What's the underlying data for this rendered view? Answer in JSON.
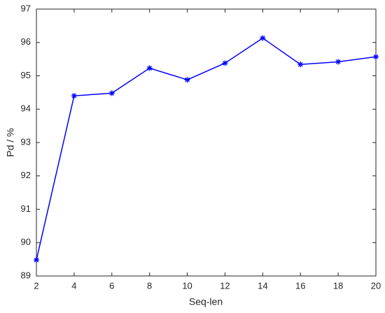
{
  "chart_data": {
    "type": "line",
    "x": [
      2,
      4,
      6,
      8,
      10,
      12,
      14,
      16,
      18,
      20
    ],
    "values": [
      89.48,
      94.4,
      94.48,
      95.23,
      94.88,
      95.38,
      96.13,
      95.34,
      95.42,
      95.57
    ],
    "color": "#0000ff",
    "xlabel": "Seq-len",
    "ylabel": "Pd / %",
    "xlim": [
      2,
      20
    ],
    "xticks": [
      2,
      4,
      6,
      8,
      10,
      12,
      14,
      16,
      18,
      20
    ],
    "ylim": [
      89,
      97
    ],
    "yticks": [
      89,
      90,
      91,
      92,
      93,
      94,
      95,
      96,
      97
    ],
    "marker": "asterisk",
    "grid": false
  }
}
